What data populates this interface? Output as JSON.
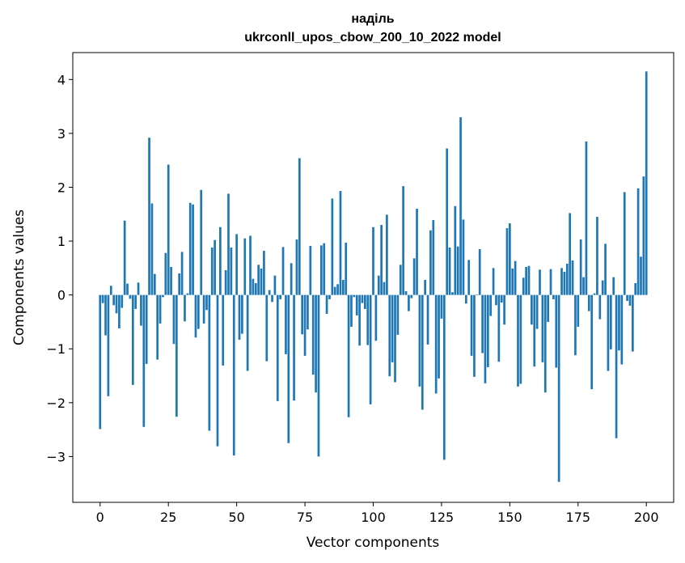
{
  "chart_data": {
    "type": "bar",
    "title_line1": "наділь",
    "title_line2": "ukrconll_upos_cbow_200_10_2022 model",
    "xlabel": "Vector components",
    "ylabel": "Components values",
    "xlim": [
      -10,
      210
    ],
    "ylim": [
      -3.85,
      4.5
    ],
    "xticks": [
      0,
      25,
      50,
      75,
      100,
      125,
      150,
      175,
      200
    ],
    "yticks": [
      -3,
      -2,
      -1,
      0,
      1,
      2,
      3,
      4
    ],
    "xtick_labels": [
      "0",
      "25",
      "50",
      "75",
      "100",
      "125",
      "150",
      "175",
      "200"
    ],
    "ytick_labels": [
      "−3",
      "−2",
      "−1",
      "0",
      "1",
      "2",
      "3",
      "4"
    ],
    "bar_color": "#1f77b4",
    "values": [
      -2.49,
      -0.15,
      -0.75,
      -1.88,
      0.17,
      -0.19,
      -0.34,
      -0.62,
      -0.24,
      1.38,
      0.21,
      -0.07,
      -1.67,
      -0.26,
      0.23,
      -0.57,
      -2.45,
      -1.28,
      2.92,
      1.7,
      0.39,
      -1.2,
      -0.53,
      -0.04,
      0.78,
      2.42,
      0.52,
      -0.91,
      -2.26,
      0.4,
      0.8,
      -0.49,
      0.03,
      1.71,
      1.68,
      -0.79,
      -0.63,
      1.95,
      -0.53,
      -0.28,
      -2.52,
      0.88,
      1.02,
      -2.81,
      1.26,
      -1.31,
      0.46,
      1.88,
      0.88,
      -2.98,
      1.13,
      -0.83,
      -0.72,
      1.05,
      -1.41,
      1.1,
      0.3,
      0.22,
      0.56,
      0.49,
      0.82,
      -1.23,
      0.09,
      -0.13,
      0.36,
      -1.97,
      -0.08,
      0.89,
      -1.1,
      -2.75,
      0.59,
      -1.96,
      1.03,
      2.54,
      -0.73,
      -1.13,
      -0.64,
      0.91,
      -1.48,
      -1.81,
      -3.0,
      0.92,
      0.96,
      -0.35,
      -0.08,
      1.79,
      0.15,
      0.2,
      1.93,
      0.28,
      0.97,
      -2.27,
      -0.59,
      -0.04,
      -0.38,
      -0.94,
      -0.15,
      -0.26,
      -0.93,
      -2.03,
      1.26,
      -0.85,
      0.36,
      1.3,
      0.24,
      1.49,
      -1.51,
      -1.25,
      -1.62,
      -0.74,
      0.56,
      2.02,
      0.07,
      -0.3,
      -0.06,
      0.68,
      1.6,
      -1.7,
      -2.13,
      0.28,
      -0.92,
      1.2,
      1.39,
      -1.83,
      -1.55,
      -0.44,
      -3.06,
      2.72,
      0.88,
      0.05,
      1.65,
      0.9,
      3.3,
      1.4,
      -0.16,
      0.65,
      -1.13,
      -1.52,
      0.01,
      0.85,
      -1.08,
      -1.64,
      -1.34,
      -0.39,
      0.5,
      -0.19,
      -1.24,
      -0.14,
      -0.55,
      1.24,
      1.33,
      0.49,
      0.63,
      -1.7,
      -1.65,
      0.32,
      0.52,
      0.54,
      -0.55,
      -1.33,
      -0.63,
      0.47,
      -1.25,
      -1.81,
      -0.5,
      0.48,
      -0.08,
      -1.35,
      -3.47,
      0.5,
      0.43,
      0.58,
      1.52,
      0.64,
      -1.12,
      -0.59,
      1.03,
      0.33,
      2.85,
      -0.3,
      -1.75,
      0.03,
      1.45,
      -0.45,
      0.27,
      0.95,
      -1.41,
      -1.01,
      0.33,
      -2.66,
      -1.03,
      -1.29,
      1.91,
      -0.11,
      -0.2,
      -1.05,
      0.22,
      1.98,
      0.71,
      2.2,
      4.15
    ]
  }
}
